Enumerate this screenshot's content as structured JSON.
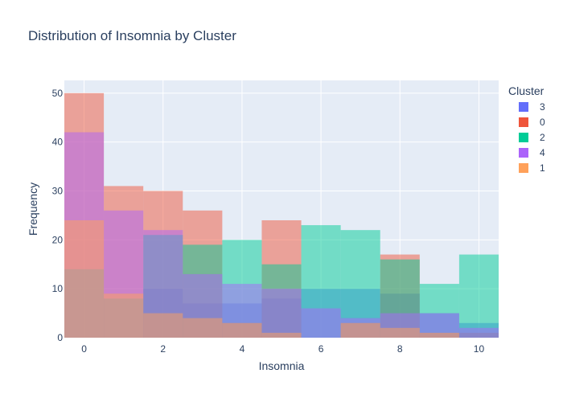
{
  "chart_data": {
    "type": "bar",
    "title": "Distribution of Insomnia by Cluster",
    "xlabel": "Insomnia",
    "ylabel": "Frequency",
    "x": [
      0,
      1,
      2,
      3,
      4,
      5,
      6,
      7,
      8,
      9,
      10
    ],
    "xlim": [
      -0.5,
      10.5
    ],
    "ylim": [
      0,
      52.6
    ],
    "x_ticks": [
      0,
      2,
      4,
      6,
      8,
      10
    ],
    "y_ticks": [
      0,
      10,
      20,
      30,
      40,
      50
    ],
    "barmode": "overlay",
    "opacity": 0.5,
    "grid": true,
    "legend": {
      "title": "Cluster",
      "placement": "right"
    },
    "series": [
      {
        "name": "3",
        "color": "#636efa",
        "values": [
          0,
          0,
          10,
          7,
          7,
          8,
          10,
          10,
          9,
          5,
          3
        ]
      },
      {
        "name": "0",
        "color": "#EF553B",
        "values": [
          50,
          31,
          30,
          26,
          3,
          24,
          0,
          3,
          17,
          1,
          1
        ]
      },
      {
        "name": "2",
        "color": "#00cc96",
        "values": [
          14,
          8,
          21,
          19,
          20,
          15,
          23,
          22,
          16,
          11,
          17
        ]
      },
      {
        "name": "4",
        "color": "#ab63fa",
        "values": [
          42,
          26,
          22,
          13,
          11,
          10,
          6,
          4,
          5,
          5,
          2
        ]
      },
      {
        "name": "1",
        "color": "#FFA15A",
        "values": [
          24,
          9,
          5,
          4,
          3,
          1,
          0,
          3,
          2,
          1,
          0
        ]
      }
    ]
  }
}
